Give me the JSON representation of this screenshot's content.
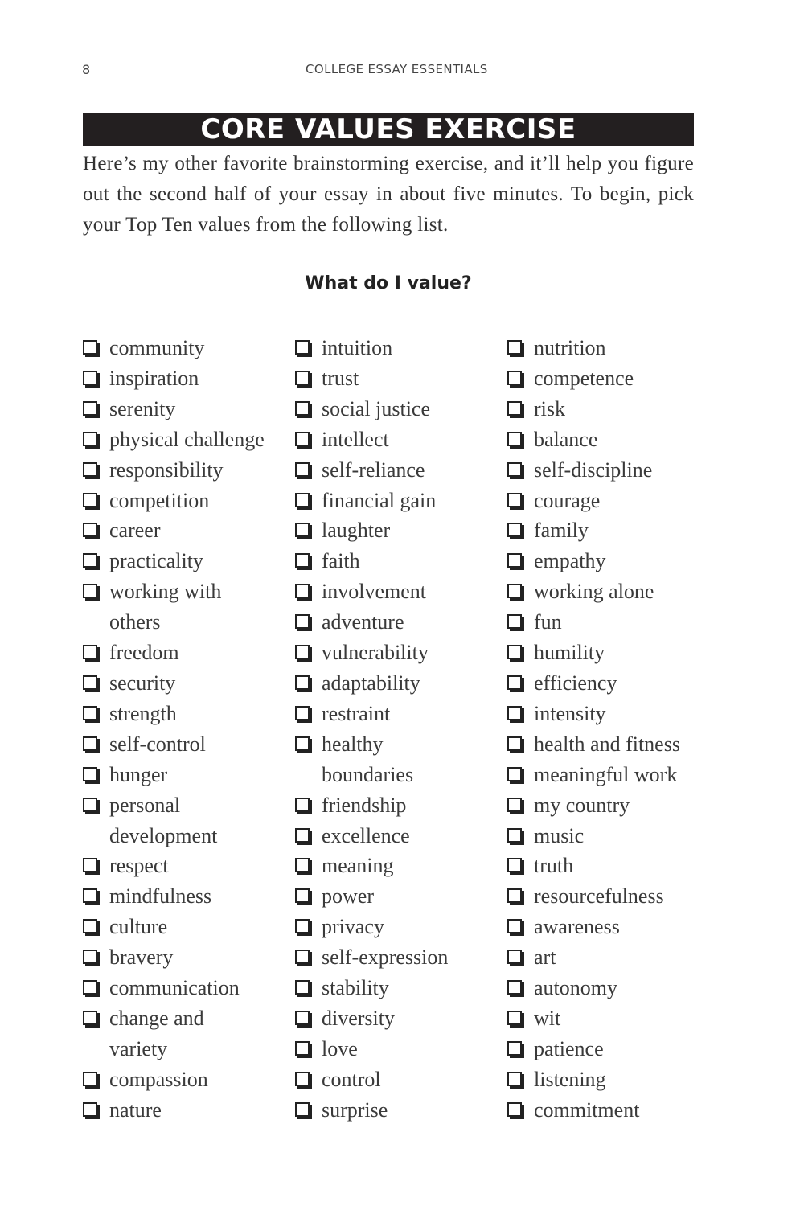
{
  "header": {
    "page_number": "8",
    "running_title": "COLLEGE ESSAY ESSENTIALS"
  },
  "section_title": "CORE VALUES EXERCISE",
  "intro": "Here’s my other favorite brainstorming exercise, and it’ll help you figure out the second half of your essay in about five minutes. To begin, pick your Top Ten values from the following list.",
  "subheading": "What do I value?",
  "checkbox_icon": "checkbox-shadowed-square",
  "columns": [
    [
      [
        "community"
      ],
      [
        "inspiration"
      ],
      [
        "serenity"
      ],
      [
        "physical challenge"
      ],
      [
        "responsibility"
      ],
      [
        "competition"
      ],
      [
        "career"
      ],
      [
        "practicality"
      ],
      [
        "working with",
        "others"
      ],
      [
        "freedom"
      ],
      [
        "security"
      ],
      [
        "strength"
      ],
      [
        "self-control"
      ],
      [
        "hunger"
      ],
      [
        "personal",
        "development"
      ],
      [
        "respect"
      ],
      [
        "mindfulness"
      ],
      [
        "culture"
      ],
      [
        "bravery"
      ],
      [
        "communication"
      ],
      [
        "change and",
        "variety"
      ],
      [
        "compassion"
      ],
      [
        "nature"
      ]
    ],
    [
      [
        "intuition"
      ],
      [
        "trust"
      ],
      [
        "social justice"
      ],
      [
        "intellect"
      ],
      [
        "self-reliance"
      ],
      [
        "financial gain"
      ],
      [
        "laughter"
      ],
      [
        "faith"
      ],
      [
        "involvement"
      ],
      [
        "adventure"
      ],
      [
        "vulnerability"
      ],
      [
        "adaptability"
      ],
      [
        "restraint"
      ],
      [
        "healthy",
        "boundaries"
      ],
      [
        "friendship"
      ],
      [
        "excellence"
      ],
      [
        "meaning"
      ],
      [
        "power"
      ],
      [
        "privacy"
      ],
      [
        "self-expression"
      ],
      [
        "stability"
      ],
      [
        "diversity"
      ],
      [
        "love"
      ],
      [
        "control"
      ],
      [
        "surprise"
      ]
    ],
    [
      [
        "nutrition"
      ],
      [
        "competence"
      ],
      [
        "risk"
      ],
      [
        "balance"
      ],
      [
        "self-discipline"
      ],
      [
        "courage"
      ],
      [
        "family"
      ],
      [
        "empathy"
      ],
      [
        "working alone"
      ],
      [
        "fun"
      ],
      [
        "humility"
      ],
      [
        "efficiency"
      ],
      [
        "intensity"
      ],
      [
        "health and fitness"
      ],
      [
        "meaningful work"
      ],
      [
        "my country"
      ],
      [
        "music"
      ],
      [
        "truth"
      ],
      [
        "resourcefulness"
      ],
      [
        "awareness"
      ],
      [
        "art"
      ],
      [
        "autonomy"
      ],
      [
        "wit"
      ],
      [
        "patience"
      ],
      [
        "listening"
      ],
      [
        "commitment"
      ]
    ]
  ]
}
